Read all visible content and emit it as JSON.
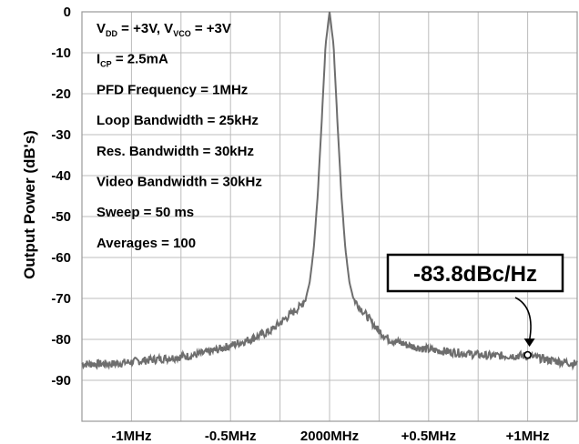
{
  "chart_data": {
    "type": "line",
    "title": "",
    "ylabel": "Output Power (dB's)",
    "xlabel": "",
    "ylim": [
      -100,
      0
    ],
    "xlim": [
      -1.25,
      1.25
    ],
    "grid": true,
    "y_ticks": [
      "0",
      "-10",
      "-20",
      "-30",
      "-40",
      "-50",
      "-60",
      "-70",
      "-80",
      "-90"
    ],
    "y_tick_values": [
      0,
      -10,
      -20,
      -30,
      -40,
      -50,
      -60,
      -70,
      -80,
      -90
    ],
    "x_ticks": [
      "-1MHz",
      "-0.5MHz",
      "2000MHz",
      "+0.5MHz",
      "+1MHz"
    ],
    "x_tick_values": [
      -1,
      -0.5,
      0,
      0.5,
      1
    ],
    "x_offset_unit": "MHz",
    "center_frequency": "2000MHz",
    "series": [
      {
        "color": "#6e6e6e",
        "x": [
          -1.25,
          -1.1,
          -1.0,
          -0.9,
          -0.8,
          -0.7,
          -0.6,
          -0.5,
          -0.4,
          -0.3,
          -0.25,
          -0.2,
          -0.15,
          -0.12,
          -0.1,
          -0.08,
          -0.06,
          -0.04,
          -0.02,
          0,
          0.02,
          0.04,
          0.06,
          0.08,
          0.1,
          0.12,
          0.15,
          0.2,
          0.25,
          0.3,
          0.4,
          0.5,
          0.6,
          0.7,
          0.8,
          0.9,
          1.0,
          1.1,
          1.25
        ],
        "y": [
          -86,
          -86,
          -85.5,
          -85,
          -84.5,
          -84,
          -83,
          -81.5,
          -80,
          -78,
          -76,
          -74,
          -72,
          -70,
          -66,
          -58,
          -45,
          -27,
          -8,
          0,
          -8,
          -27,
          -45,
          -58,
          -66,
          -70,
          -72,
          -75,
          -78,
          -80,
          -81.5,
          -82.5,
          -83,
          -83.5,
          -84,
          -84,
          -84,
          -85,
          -86
        ]
      }
    ],
    "annotations": {
      "lines": [
        {
          "parts": [
            {
              "t": "V"
            },
            {
              "t": "DD",
              "sub": true
            },
            {
              "t": " = +3V, V"
            },
            {
              "t": "VCO",
              "sub": true
            },
            {
              "t": " = +3V"
            }
          ]
        },
        {
          "parts": [
            {
              "t": "I"
            },
            {
              "t": "CP",
              "sub": true
            },
            {
              "t": " = 2.5mA"
            }
          ]
        },
        {
          "parts": [
            {
              "t": "PFD Frequency = 1MHz"
            }
          ]
        },
        {
          "parts": [
            {
              "t": "Loop Bandwidth = 25kHz"
            }
          ]
        },
        {
          "parts": [
            {
              "t": "Res. Bandwidth = 30kHz"
            }
          ]
        },
        {
          "parts": [
            {
              "t": "Video Bandwidth = 30kHz"
            }
          ]
        },
        {
          "parts": [
            {
              "t": "Sweep = 50 ms"
            }
          ]
        },
        {
          "parts": [
            {
              "t": "Averages = 100"
            }
          ]
        }
      ],
      "callout": "-83.8dBc/Hz",
      "marker": {
        "x": 1.0,
        "y": -83.8
      }
    }
  }
}
